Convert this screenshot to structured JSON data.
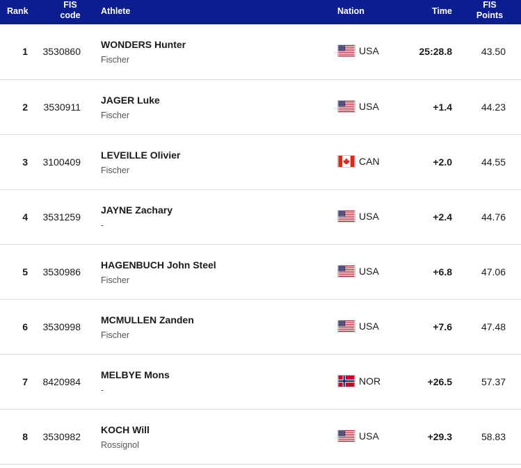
{
  "header": {
    "rank": "Rank",
    "fis_code_1": "FIS",
    "fis_code_2": "code",
    "athlete": "Athlete",
    "nation": "Nation",
    "time": "Time",
    "points_1": "FIS",
    "points_2": "Points"
  },
  "colors": {
    "header_bg": "#0b1d8f",
    "row_divider": "#dcdcdc"
  },
  "rows": [
    {
      "rank": "1",
      "code": "3530860",
      "name": "WONDERS Hunter",
      "brand": "Fischer",
      "nation": "USA",
      "flag": "us-flag-icon",
      "time": "25:28.8",
      "points": "43.50"
    },
    {
      "rank": "2",
      "code": "3530911",
      "name": "JAGER Luke",
      "brand": "Fischer",
      "nation": "USA",
      "flag": "us-flag-icon",
      "time": "+1.4",
      "points": "44.23"
    },
    {
      "rank": "3",
      "code": "3100409",
      "name": "LEVEILLE Olivier",
      "brand": "Fischer",
      "nation": "CAN",
      "flag": "ca-flag-icon",
      "time": "+2.0",
      "points": "44.55"
    },
    {
      "rank": "4",
      "code": "3531259",
      "name": "JAYNE Zachary",
      "brand": "-",
      "nation": "USA",
      "flag": "us-flag-icon",
      "time": "+2.4",
      "points": "44.76"
    },
    {
      "rank": "5",
      "code": "3530986",
      "name": "HAGENBUCH John Steel",
      "brand": "Fischer",
      "nation": "USA",
      "flag": "us-flag-icon",
      "time": "+6.8",
      "points": "47.06"
    },
    {
      "rank": "6",
      "code": "3530998",
      "name": "MCMULLEN Zanden",
      "brand": "Fischer",
      "nation": "USA",
      "flag": "us-flag-icon",
      "time": "+7.6",
      "points": "47.48"
    },
    {
      "rank": "7",
      "code": "8420984",
      "name": "MELBYE Mons",
      "brand": "-",
      "nation": "NOR",
      "flag": "no-flag-icon",
      "time": "+26.5",
      "points": "57.37"
    },
    {
      "rank": "8",
      "code": "3530982",
      "name": "KOCH Will",
      "brand": "Rossignol",
      "nation": "USA",
      "flag": "us-flag-icon",
      "time": "+29.3",
      "points": "58.83"
    }
  ]
}
